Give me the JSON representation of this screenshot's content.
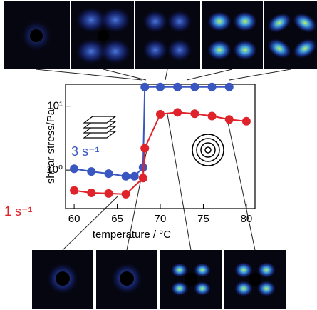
{
  "chart_data": {
    "type": "line",
    "x_label": "temperature / °C",
    "y_label": "shear stress/Pa",
    "log_y": true,
    "xlim": [
      59,
      81
    ],
    "xticks": [
      60,
      65,
      70,
      75,
      80
    ],
    "ylim": [
      0.25,
      22
    ],
    "yticks": [
      {
        "value": 1,
        "label": "10⁰"
      },
      {
        "value": 10,
        "label": "10¹"
      }
    ],
    "series": [
      {
        "name": "3 s⁻¹",
        "color": "#3a56c0",
        "x": [
          60,
          62,
          64,
          66,
          67,
          68,
          68.2,
          70,
          72,
          74,
          76,
          78
        ],
        "values": [
          1.05,
          0.95,
          0.88,
          0.8,
          0.8,
          1.1,
          20,
          20,
          20,
          20,
          20,
          20
        ]
      },
      {
        "name": "1 s⁻¹",
        "color": "#e0222a",
        "x": [
          60,
          62,
          64,
          66,
          68,
          68.2,
          70,
          72,
          74,
          76,
          78,
          80
        ],
        "values": [
          0.48,
          0.44,
          0.43,
          0.42,
          0.75,
          2.2,
          7.5,
          8,
          7.6,
          7,
          6.2,
          5.8
        ]
      }
    ]
  }
}
